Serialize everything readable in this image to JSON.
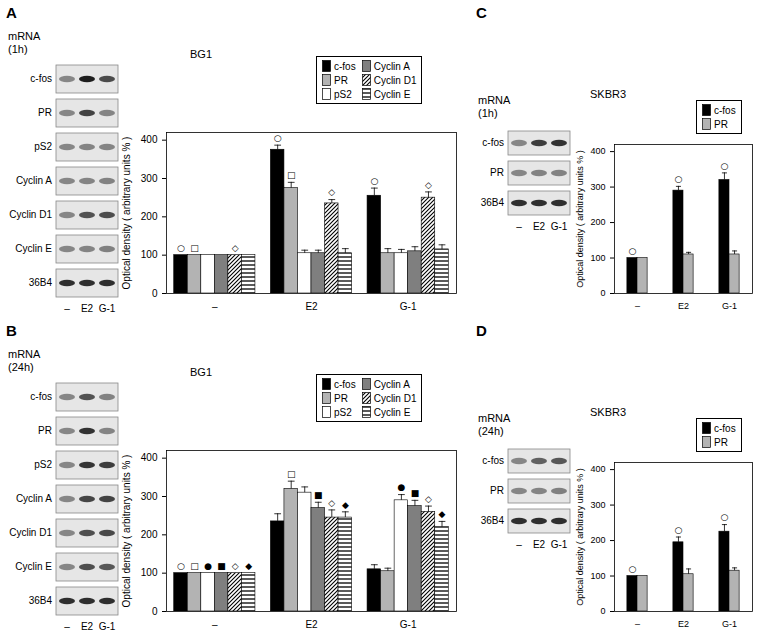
{
  "chart_data": [
    {
      "panel": "A",
      "type": "bar",
      "title": "BG1",
      "blot_label": [
        "mRNA",
        "(1h)"
      ],
      "blot_rows": [
        "c-fos",
        "PR",
        "pS2",
        "Cyclin A",
        "Cyclin D1",
        "Cyclin E",
        "36B4"
      ],
      "categories": [
        "–",
        "E2",
        "G-1"
      ],
      "y_label": "Optical density ( arbitrary units % )",
      "ylim": [
        0,
        420
      ],
      "yticks": [
        0,
        100,
        200,
        300,
        400
      ],
      "legend": "top-right",
      "series": [
        {
          "name": "c-fos",
          "color": "#000000",
          "values": [
            100,
            375,
            255
          ],
          "errors": [
            0,
            12,
            20
          ],
          "significance": [
            "○",
            "○",
            "○"
          ]
        },
        {
          "name": "PR",
          "color": "#b3b3b3",
          "values": [
            100,
            275,
            105
          ],
          "errors": [
            0,
            15,
            12
          ],
          "significance": [
            "□",
            "□",
            null
          ]
        },
        {
          "name": "pS2",
          "color": "#ffffff",
          "values": [
            100,
            105,
            105
          ],
          "errors": [
            0,
            8,
            10
          ],
          "significance": [
            null,
            null,
            null
          ]
        },
        {
          "name": "Cyclin A",
          "color": "#7f7f7f",
          "values": [
            100,
            105,
            110
          ],
          "errors": [
            0,
            8,
            12
          ],
          "significance": [
            null,
            null,
            null
          ]
        },
        {
          "name": "Cyclin D1",
          "color": "#ffffff",
          "values": [
            100,
            235,
            250
          ],
          "errors": [
            0,
            10,
            15
          ],
          "significance": [
            "◇",
            "◇",
            "◇"
          ]
        },
        {
          "name": "Cyclin E",
          "color": "#ffffff",
          "values": [
            100,
            105,
            115
          ],
          "errors": [
            0,
            12,
            12
          ],
          "significance": [
            null,
            null,
            null
          ]
        }
      ]
    },
    {
      "panel": "B",
      "type": "bar",
      "title": "BG1",
      "blot_label": [
        "mRNA",
        "(24h)"
      ],
      "blot_rows": [
        "c-fos",
        "PR",
        "pS2",
        "Cyclin A",
        "Cyclin D1",
        "Cyclin E",
        "36B4"
      ],
      "categories": [
        "–",
        "E2",
        "G-1"
      ],
      "y_label": "Optical density ( arbitrary units % )",
      "ylim": [
        0,
        420
      ],
      "yticks": [
        0,
        100,
        200,
        300,
        400
      ],
      "legend": "top-right",
      "series": [
        {
          "name": "c-fos",
          "color": "#000000",
          "values": [
            100,
            235,
            110
          ],
          "errors": [
            0,
            20,
            12
          ],
          "significance": [
            "○",
            null,
            null
          ]
        },
        {
          "name": "PR",
          "color": "#b3b3b3",
          "values": [
            100,
            320,
            105
          ],
          "errors": [
            0,
            20,
            8
          ],
          "significance": [
            "□",
            "□",
            null
          ]
        },
        {
          "name": "pS2",
          "color": "#ffffff",
          "values": [
            100,
            310,
            290
          ],
          "errors": [
            0,
            15,
            15
          ],
          "significance": [
            "●",
            null,
            "●"
          ]
        },
        {
          "name": "Cyclin A",
          "color": "#7f7f7f",
          "values": [
            100,
            270,
            275
          ],
          "errors": [
            0,
            15,
            15
          ],
          "significance": [
            "■",
            "■",
            "■"
          ]
        },
        {
          "name": "Cyclin D1",
          "color": "#ffffff",
          "values": [
            100,
            245,
            260
          ],
          "errors": [
            0,
            20,
            15
          ],
          "significance": [
            "◇",
            "◇",
            "◇"
          ]
        },
        {
          "name": "Cyclin E",
          "color": "#ffffff",
          "values": [
            100,
            245,
            220
          ],
          "errors": [
            0,
            15,
            15
          ],
          "significance": [
            "◆",
            "◆",
            "◆"
          ]
        }
      ]
    },
    {
      "panel": "C",
      "type": "bar",
      "title": "SKBR3",
      "blot_label": [
        "mRNA",
        "(1h)"
      ],
      "blot_rows": [
        "c-fos",
        "PR",
        "36B4"
      ],
      "categories": [
        "–",
        "E2",
        "G-1"
      ],
      "y_label": "Optical density ( arbitrary units % )",
      "ylim": [
        0,
        420
      ],
      "yticks": [
        0,
        100,
        200,
        300,
        400
      ],
      "legend": "top-right",
      "series": [
        {
          "name": "c-fos",
          "color": "#000000",
          "values": [
            100,
            290,
            320
          ],
          "errors": [
            0,
            12,
            20
          ],
          "significance": [
            "○",
            "○",
            "○"
          ]
        },
        {
          "name": "PR",
          "color": "#b3b3b3",
          "values": [
            100,
            110,
            110
          ],
          "errors": [
            0,
            6,
            10
          ],
          "significance": [
            null,
            null,
            null
          ]
        }
      ]
    },
    {
      "panel": "D",
      "type": "bar",
      "title": "SKBR3",
      "blot_label": [
        "mRNA",
        "(24h)"
      ],
      "blot_rows": [
        "c-fos",
        "PR",
        "36B4"
      ],
      "categories": [
        "–",
        "E2",
        "G-1"
      ],
      "y_label": "Optical density ( arbitrary units % )",
      "ylim": [
        0,
        420
      ],
      "yticks": [
        0,
        100,
        200,
        300,
        400
      ],
      "legend": "top-right",
      "series": [
        {
          "name": "c-fos",
          "color": "#000000",
          "values": [
            100,
            195,
            225
          ],
          "errors": [
            0,
            15,
            20
          ],
          "significance": [
            "○",
            "○",
            "○"
          ]
        },
        {
          "name": "PR",
          "color": "#b3b3b3",
          "values": [
            100,
            105,
            115
          ],
          "errors": [
            0,
            15,
            8
          ],
          "significance": [
            null,
            null,
            null
          ]
        }
      ]
    }
  ]
}
